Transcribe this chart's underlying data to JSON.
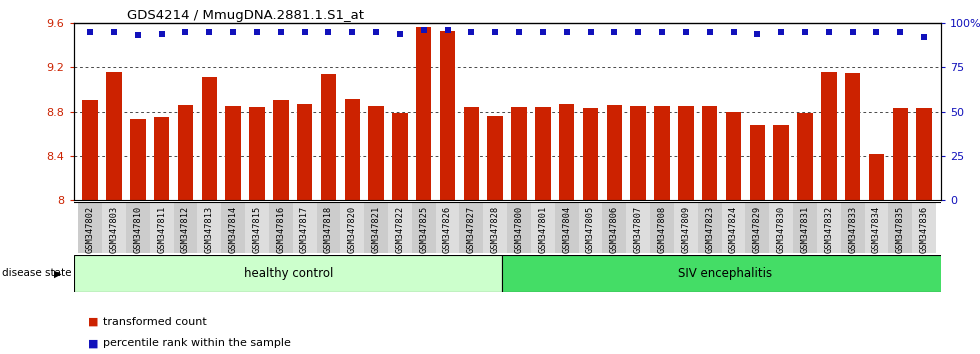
{
  "title": "GDS4214 / MmugDNA.2881.1.S1_at",
  "samples": [
    "GSM347802",
    "GSM347803",
    "GSM347810",
    "GSM347811",
    "GSM347812",
    "GSM347813",
    "GSM347814",
    "GSM347815",
    "GSM347816",
    "GSM347817",
    "GSM347818",
    "GSM347820",
    "GSM347821",
    "GSM347822",
    "GSM347825",
    "GSM347826",
    "GSM347827",
    "GSM347828",
    "GSM347800",
    "GSM347801",
    "GSM347804",
    "GSM347805",
    "GSM347806",
    "GSM347807",
    "GSM347808",
    "GSM347809",
    "GSM347823",
    "GSM347824",
    "GSM347829",
    "GSM347830",
    "GSM347831",
    "GSM347832",
    "GSM347833",
    "GSM347834",
    "GSM347835",
    "GSM347836"
  ],
  "bar_values": [
    8.9,
    9.16,
    8.73,
    8.75,
    8.86,
    9.11,
    8.85,
    8.84,
    8.9,
    8.87,
    9.14,
    8.91,
    8.85,
    8.79,
    9.56,
    9.53,
    8.84,
    8.76,
    8.84,
    8.84,
    8.87,
    8.83,
    8.86,
    8.85,
    8.85,
    8.85,
    8.85,
    8.8,
    8.68,
    8.68,
    8.79,
    9.16,
    9.15,
    8.42,
    8.83,
    8.83
  ],
  "percentile_values": [
    95,
    95,
    93,
    94,
    95,
    95,
    95,
    95,
    95,
    95,
    95,
    95,
    95,
    94,
    96,
    96,
    95,
    95,
    95,
    95,
    95,
    95,
    95,
    95,
    95,
    95,
    95,
    95,
    94,
    95,
    95,
    95,
    95,
    95,
    95,
    92
  ],
  "healthy_control_count": 18,
  "bar_color": "#cc2200",
  "percentile_color": "#1111bb",
  "ylim_left": [
    8.0,
    9.6
  ],
  "ylim_right": [
    0,
    100
  ],
  "yticks_left": [
    8.0,
    8.4,
    8.8,
    9.2,
    9.6
  ],
  "ytick_labels_left": [
    "8",
    "8.4",
    "8.8",
    "9.2",
    "9.6"
  ],
  "yticks_right": [
    0,
    25,
    50,
    75,
    100
  ],
  "ytick_labels_right": [
    "0",
    "25",
    "50",
    "75",
    "100%"
  ],
  "healthy_color": "#ccffcc",
  "siv_color": "#44dd66",
  "tick_bg_even": "#cccccc",
  "tick_bg_odd": "#dddddd"
}
